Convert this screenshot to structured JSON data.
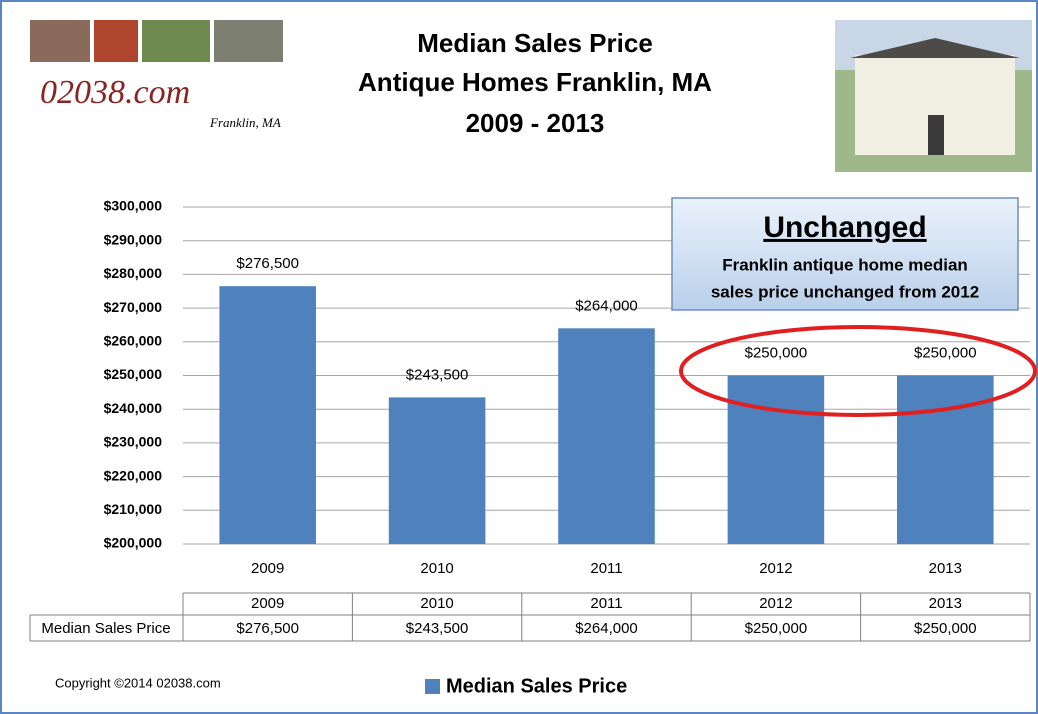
{
  "chart_data": {
    "type": "bar",
    "title": [
      "Median Sales Price",
      "Antique Homes Franklin, MA",
      "2009 - 2013"
    ],
    "categories": [
      "2009",
      "2010",
      "2011",
      "2012",
      "2013"
    ],
    "series": [
      {
        "name": "Median Sales Price",
        "color": "#4f81bd",
        "values": [
          276500,
          243500,
          264000,
          250000,
          250000
        ],
        "value_labels": [
          "$276,500",
          "$243,500",
          "$264,000",
          "$250,000",
          "$250,000"
        ]
      }
    ],
    "ylim": [
      200000,
      300000
    ],
    "yticks": [
      {
        "value": 200000,
        "label": "$200,000"
      },
      {
        "value": 210000,
        "label": "$210,000"
      },
      {
        "value": 220000,
        "label": "$220,000"
      },
      {
        "value": 230000,
        "label": "$230,000"
      },
      {
        "value": 240000,
        "label": "$240,000"
      },
      {
        "value": 250000,
        "label": "$250,000"
      },
      {
        "value": 260000,
        "label": "$260,000"
      },
      {
        "value": 270000,
        "label": "$270,000"
      },
      {
        "value": 280000,
        "label": "$280,000"
      },
      {
        "value": 290000,
        "label": "$290,000"
      },
      {
        "value": 300000,
        "label": "$300,000"
      }
    ],
    "grid": true,
    "legend": "bottom",
    "annotation": {
      "heading": "Unchanged",
      "lines": [
        "Franklin antique home median",
        "sales price unchanged from 2012"
      ]
    }
  },
  "branding": {
    "logo": "02038.com",
    "place": "Franklin, MA",
    "copyright": "Copyright ©2014 02038.com"
  }
}
